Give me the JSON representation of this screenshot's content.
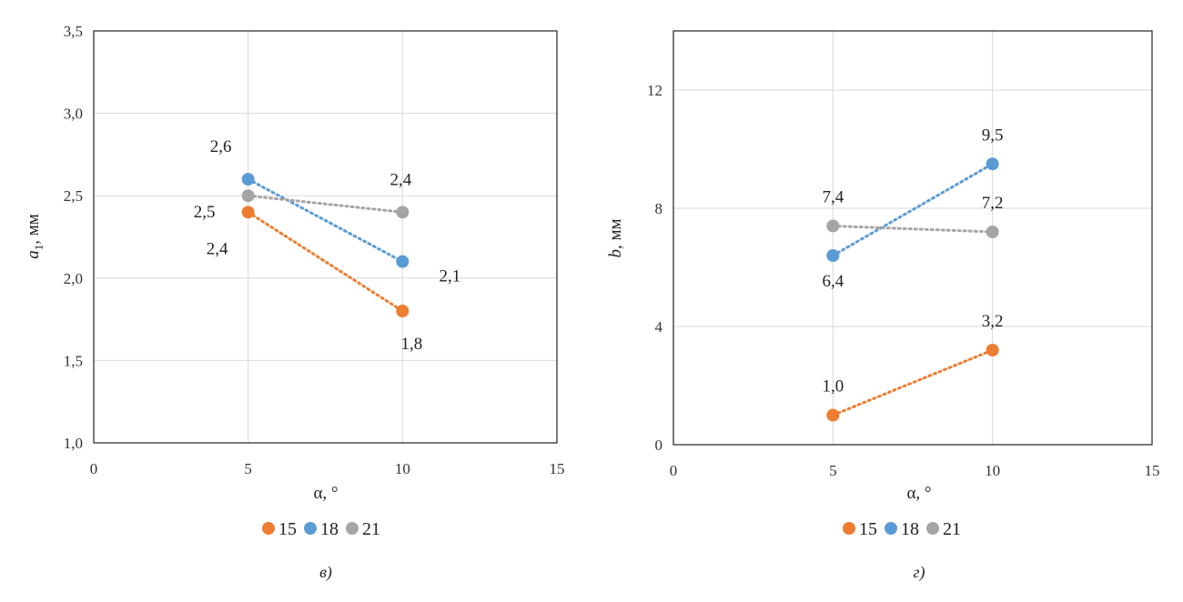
{
  "chart_data": [
    {
      "id": "left",
      "type": "line",
      "xlabel": "α, °",
      "ylabel_main": "a",
      "ylabel_sub": "1",
      "ylabel_unit": ", мм",
      "xlim": [
        0,
        15
      ],
      "ylim": [
        1.0,
        3.5
      ],
      "xticks": [
        0,
        5,
        10,
        15
      ],
      "yticks": [
        1.0,
        1.5,
        2.0,
        2.5,
        3.0,
        3.5
      ],
      "xtick_labels": [
        "0",
        "5",
        "10",
        "15"
      ],
      "ytick_labels": [
        "1,0",
        "1,5",
        "2,0",
        "2,5",
        "3,0",
        "3,5"
      ],
      "grid": true,
      "legend_position": "bottom",
      "caption": "в)",
      "series": [
        {
          "name": "15",
          "color": "#ED7D31",
          "x": [
            5,
            10
          ],
          "y": [
            2.4,
            1.8
          ],
          "labels": [
            "2,4",
            "1,8"
          ]
        },
        {
          "name": "18",
          "color": "#5B9BD5",
          "x": [
            5,
            10
          ],
          "y": [
            2.6,
            2.1
          ],
          "labels": [
            "2,6",
            "2,1"
          ]
        },
        {
          "name": "21",
          "color": "#A5A5A5",
          "x": [
            5,
            10
          ],
          "y": [
            2.5,
            2.4
          ],
          "labels": [
            "2,5",
            "2,4"
          ]
        }
      ]
    },
    {
      "id": "right",
      "type": "line",
      "xlabel": "α, °",
      "ylabel_main": "b",
      "ylabel_sub": "",
      "ylabel_unit": ", мм",
      "xlim": [
        0,
        15
      ],
      "ylim": [
        0,
        14
      ],
      "xticks": [
        0,
        5,
        10,
        15
      ],
      "yticks": [
        0,
        4,
        8,
        12
      ],
      "xtick_labels": [
        "0",
        "5",
        "10",
        "15"
      ],
      "ytick_labels": [
        "0",
        "4",
        "8",
        "12"
      ],
      "grid": true,
      "legend_position": "bottom",
      "caption": "г)",
      "series": [
        {
          "name": "15",
          "color": "#ED7D31",
          "x": [
            5,
            10
          ],
          "y": [
            1.0,
            3.2
          ],
          "labels": [
            "1,0",
            "3,2"
          ]
        },
        {
          "name": "18",
          "color": "#5B9BD5",
          "x": [
            5,
            10
          ],
          "y": [
            6.4,
            9.5
          ],
          "labels": [
            "6,4",
            "9,5"
          ]
        },
        {
          "name": "21",
          "color": "#A5A5A5",
          "x": [
            5,
            10
          ],
          "y": [
            7.4,
            7.2
          ],
          "labels": [
            "7,4",
            "7,2"
          ]
        }
      ]
    }
  ]
}
